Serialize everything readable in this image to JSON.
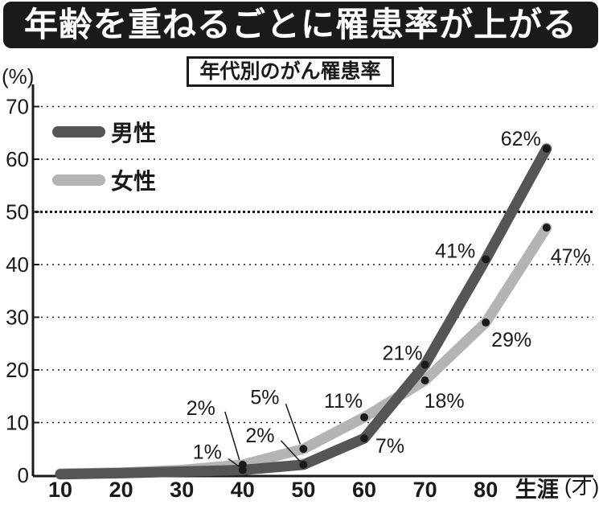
{
  "banner": "年齢を重ねるごとに罹患率が上がる",
  "chart_data": {
    "type": "line",
    "title": "年代別のがん罹患率",
    "ylabel": "(%)",
    "xunit": "(才)",
    "categories": [
      "10",
      "20",
      "30",
      "40",
      "50",
      "60",
      "70",
      "80",
      "生涯"
    ],
    "ylim": [
      0,
      70
    ],
    "yticks": [
      "0",
      "10",
      "20",
      "30",
      "40",
      "50",
      "60",
      "70"
    ],
    "grid": "dotted",
    "legend_position": "top-left",
    "series": [
      {
        "name": "男性",
        "color": "#555555",
        "values": [
          0.2,
          0.4,
          0.7,
          1,
          2,
          7,
          21,
          41,
          62
        ],
        "labels": [
          "",
          "",
          "",
          "1%",
          "2%",
          "7%",
          "21%",
          "41%",
          "62%"
        ]
      },
      {
        "name": "女性",
        "color": "#b4b4b4",
        "values": [
          0.3,
          0.5,
          1,
          2,
          5,
          11,
          18,
          29,
          47
        ],
        "labels": [
          "",
          "",
          "",
          "2%",
          "5%",
          "11%",
          "18%",
          "29%",
          "47%"
        ]
      }
    ]
  }
}
